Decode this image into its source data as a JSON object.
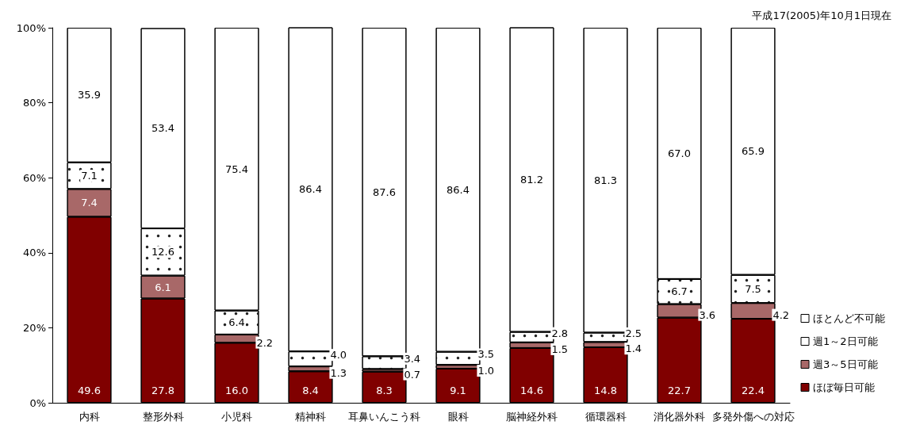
{
  "chart_data": {
    "type": "bar",
    "stacked": true,
    "subtitle": "平成17(2005)年10月1日現在",
    "categories": [
      "内科",
      "整形外科",
      "小児科",
      "精神科",
      "耳鼻いんこう科",
      "眼科",
      "脳神経外科",
      "循環器科",
      "消化器外科",
      "多発外傷への対応"
    ],
    "series": [
      {
        "name": "ほぼ毎日可能",
        "color": "#800000",
        "values": [
          49.6,
          27.8,
          16.0,
          8.4,
          8.3,
          9.1,
          14.6,
          14.8,
          22.7,
          22.4
        ],
        "value_labels": [
          "49.6",
          "27.8",
          "16.0",
          "8.4",
          "8.3",
          "9.1",
          "14.6",
          "14.8",
          "22.7",
          "22.4"
        ]
      },
      {
        "name": "週3～5日可能",
        "color": "#a86868",
        "values": [
          7.4,
          6.1,
          2.2,
          1.3,
          0.7,
          1.0,
          1.5,
          1.4,
          3.6,
          4.2
        ],
        "value_labels": [
          "7.4",
          "6.1",
          "2.2",
          "1.3",
          "0.7",
          "1.0",
          "1.5",
          "1.4",
          "3.6",
          "4.2"
        ]
      },
      {
        "name": "週1～2日可能",
        "color": "#ffffff",
        "values": [
          7.1,
          12.6,
          6.4,
          4.0,
          3.4,
          3.5,
          2.8,
          2.5,
          6.7,
          7.5
        ],
        "value_labels": [
          "7.1",
          "12.6",
          "6.4",
          "4.0",
          "3.4",
          "3.5",
          "2.8",
          "2.5",
          "6.7",
          "7.5"
        ]
      },
      {
        "name": "ほとんど不可能",
        "color": "#ffffff",
        "values": [
          35.9,
          53.4,
          75.4,
          86.4,
          87.6,
          86.4,
          81.2,
          81.3,
          67.0,
          65.9
        ],
        "value_labels": [
          "35.9",
          "53.4",
          "75.4",
          "86.4",
          "87.6",
          "86.4",
          "81.2",
          "81.3",
          "67.0",
          "65.9"
        ]
      }
    ],
    "ylim": [
      0,
      100
    ],
    "yticks": [
      {
        "value": 0,
        "label": "0%"
      },
      {
        "value": 20,
        "label": "20%"
      },
      {
        "value": 40,
        "label": "40%"
      },
      {
        "value": 60,
        "label": "60%"
      },
      {
        "value": 80,
        "label": "80%"
      },
      {
        "value": 100,
        "label": "100%"
      }
    ],
    "grid": false,
    "legend": "right"
  }
}
